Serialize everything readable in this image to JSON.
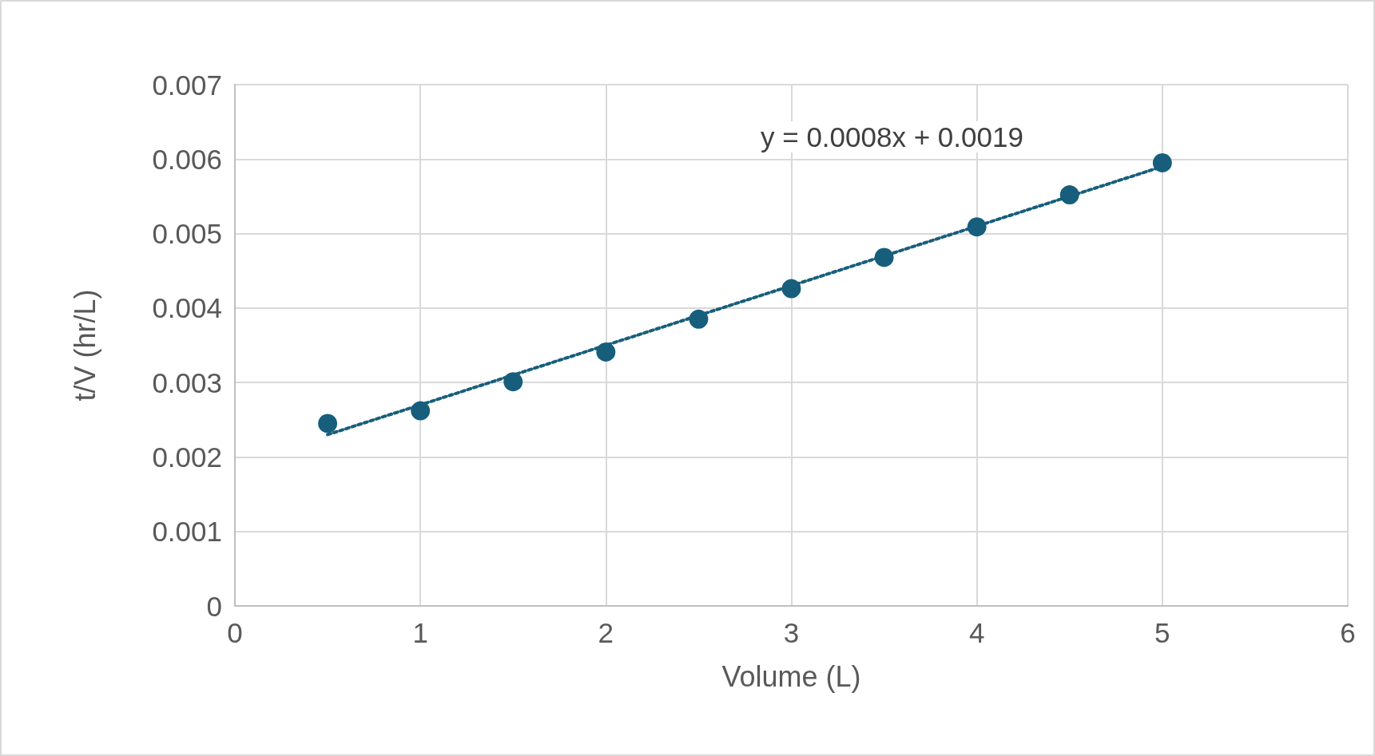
{
  "chart_data": {
    "type": "scatter",
    "xlabel": "Volume (L)",
    "ylabel": "t/V (hr/L)",
    "x": [
      0.5,
      1,
      1.5,
      2,
      2.5,
      3,
      3.5,
      4,
      4.5,
      5
    ],
    "series": [
      {
        "color": "#175e7c",
        "values": [
          0.00245,
          0.00262,
          0.00301,
          0.00341,
          0.00385,
          0.00426,
          0.00468,
          0.00509,
          0.00552,
          0.00595
        ]
      },
      {
        "type": "line",
        "color": "#175e7c",
        "x": [
          0.5,
          5
        ],
        "values": [
          0.0023,
          0.0059
        ],
        "marker": "none",
        "line_style": "dotted"
      }
    ],
    "xlim": [
      0,
      6
    ],
    "xticks": [
      0,
      1,
      2,
      3,
      4,
      5,
      6
    ],
    "ylim": [
      0,
      0.007
    ],
    "yticks": [
      0,
      0.001,
      0.002,
      0.003,
      0.004,
      0.005,
      0.006,
      0.007
    ],
    "grid": true,
    "marker": "circle",
    "annotations": [
      "y = 0.0008x + 0.0019"
    ]
  }
}
